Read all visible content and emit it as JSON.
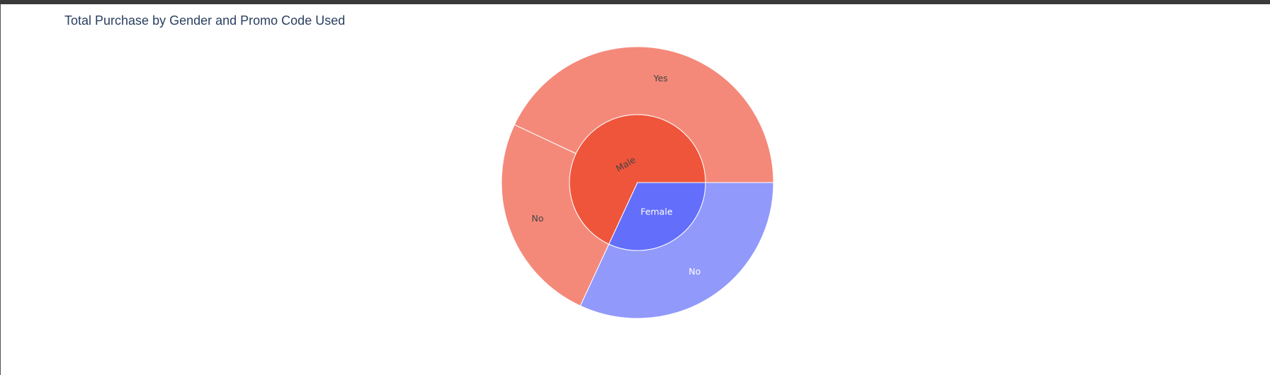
{
  "title": "Total Purchase by Gender and Promo Code Used",
  "chart_data": {
    "type": "sunburst",
    "title": "Total Purchase by Gender and Promo Code Used",
    "total": 1000,
    "inner": [
      {
        "id": "male",
        "label": "Male",
        "value": 681,
        "color": "#ef553b",
        "text_color": "#444444"
      },
      {
        "id": "female",
        "label": "Female",
        "value": 319,
        "color": "#636efa",
        "text_color": "#ffffff"
      }
    ],
    "outer": [
      {
        "id": "male-yes",
        "parent": "male",
        "label": "Yes",
        "value": 430,
        "color": "#f4897a",
        "text_color": "#444444"
      },
      {
        "id": "male-no",
        "parent": "male",
        "label": "No",
        "value": 251,
        "color": "#f4897a",
        "text_color": "#444444"
      },
      {
        "id": "female-no",
        "parent": "female",
        "label": "No",
        "value": 319,
        "color": "#9199fb",
        "text_color": "#ffffff"
      }
    ],
    "order_male": [
      "male-no",
      "male-yes"
    ],
    "stroke_color": "#ffffff"
  }
}
